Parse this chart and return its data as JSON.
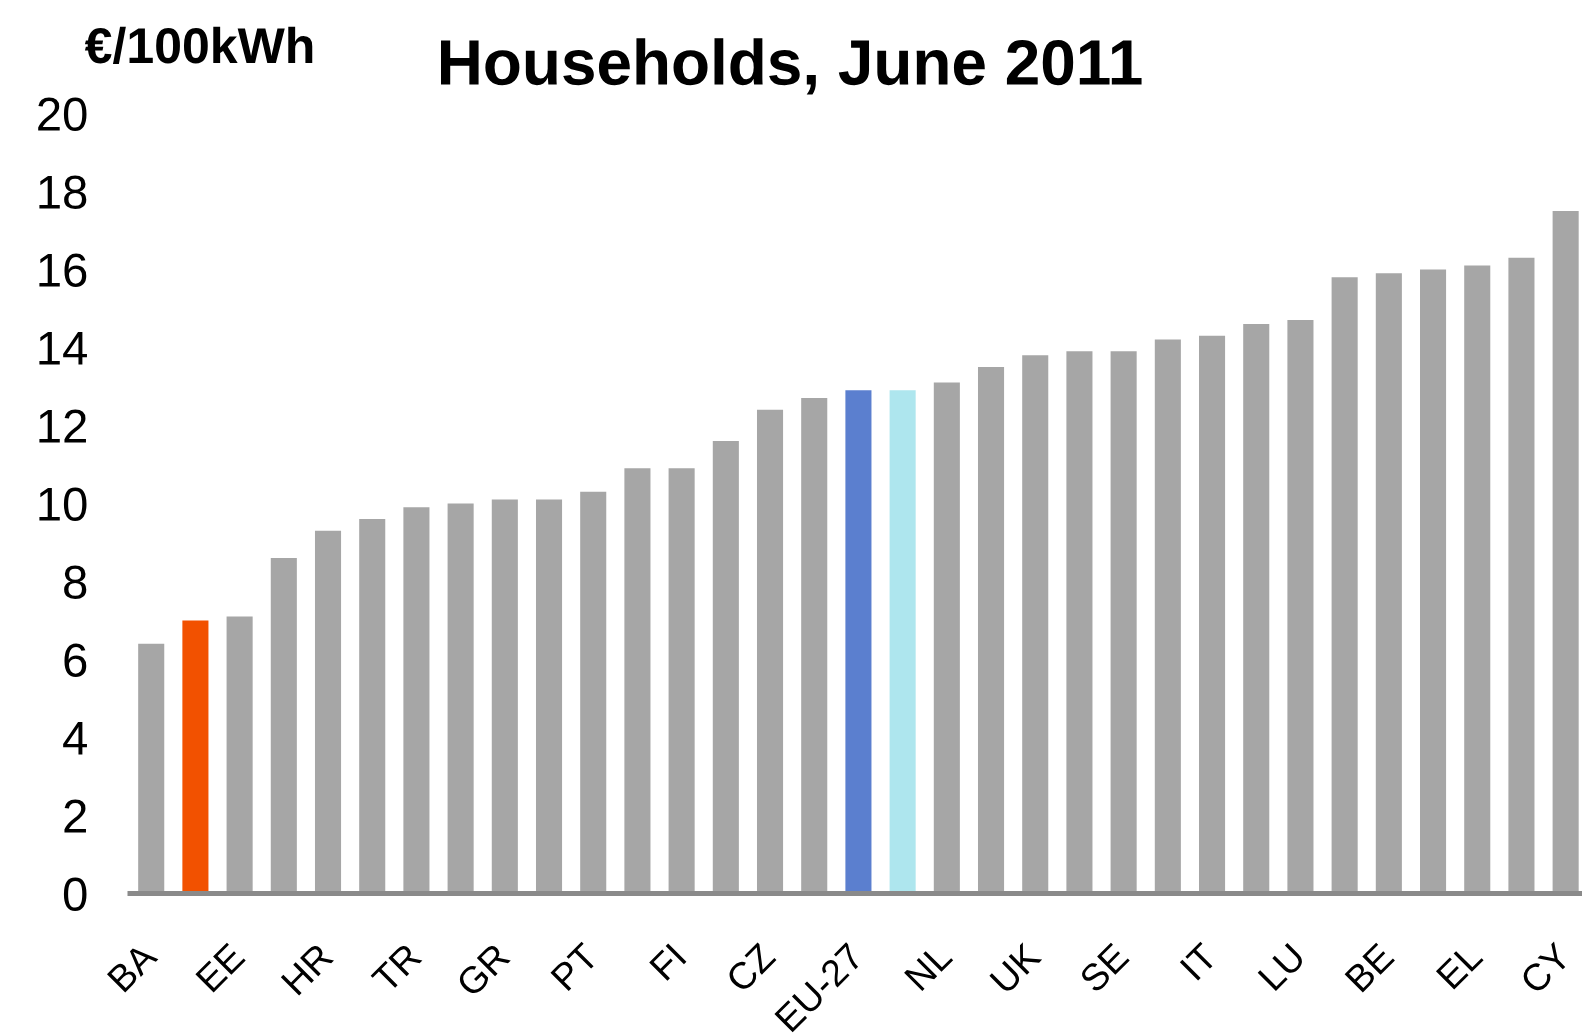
{
  "chart_data": {
    "type": "bar",
    "title": "Households, June 2011",
    "ylabel": "€/100kWh",
    "categories": [
      "BA",
      null,
      "EE",
      null,
      "HR",
      null,
      "TR",
      null,
      "GR",
      null,
      "PT",
      null,
      "FI",
      null,
      "CZ",
      null,
      "EU-27",
      null,
      "NL",
      null,
      "UK",
      null,
      "SE",
      null,
      "IT",
      null,
      "LU",
      null,
      "BE",
      null,
      "EL",
      null,
      "CY"
    ],
    "values": [
      6.4,
      7.0,
      7.1,
      8.6,
      9.3,
      9.6,
      9.9,
      10.0,
      10.1,
      10.1,
      10.3,
      10.9,
      10.9,
      11.6,
      12.4,
      12.7,
      12.9,
      12.9,
      13.1,
      13.5,
      13.8,
      13.9,
      13.9,
      14.2,
      14.3,
      14.6,
      14.7,
      15.8,
      15.9,
      16.0,
      16.1,
      16.3,
      17.5
    ],
    "colors": [
      "#a6a6a6",
      "#f25100",
      "#a6a6a6",
      "#a6a6a6",
      "#a6a6a6",
      "#a6a6a6",
      "#a6a6a6",
      "#a6a6a6",
      "#a6a6a6",
      "#a6a6a6",
      "#a6a6a6",
      "#a6a6a6",
      "#a6a6a6",
      "#a6a6a6",
      "#a6a6a6",
      "#a6a6a6",
      "#5b7fcf",
      "#aee6ee",
      "#a6a6a6",
      "#a6a6a6",
      "#a6a6a6",
      "#a6a6a6",
      "#a6a6a6",
      "#a6a6a6",
      "#a6a6a6",
      "#a6a6a6",
      "#a6a6a6",
      "#a6a6a6",
      "#a6a6a6",
      "#a6a6a6",
      "#a6a6a6",
      "#a6a6a6",
      "#a6a6a6"
    ],
    "ylim": [
      0,
      20
    ],
    "yticks": [
      0,
      2,
      4,
      6,
      8,
      10,
      12,
      14,
      16,
      18,
      20
    ]
  }
}
